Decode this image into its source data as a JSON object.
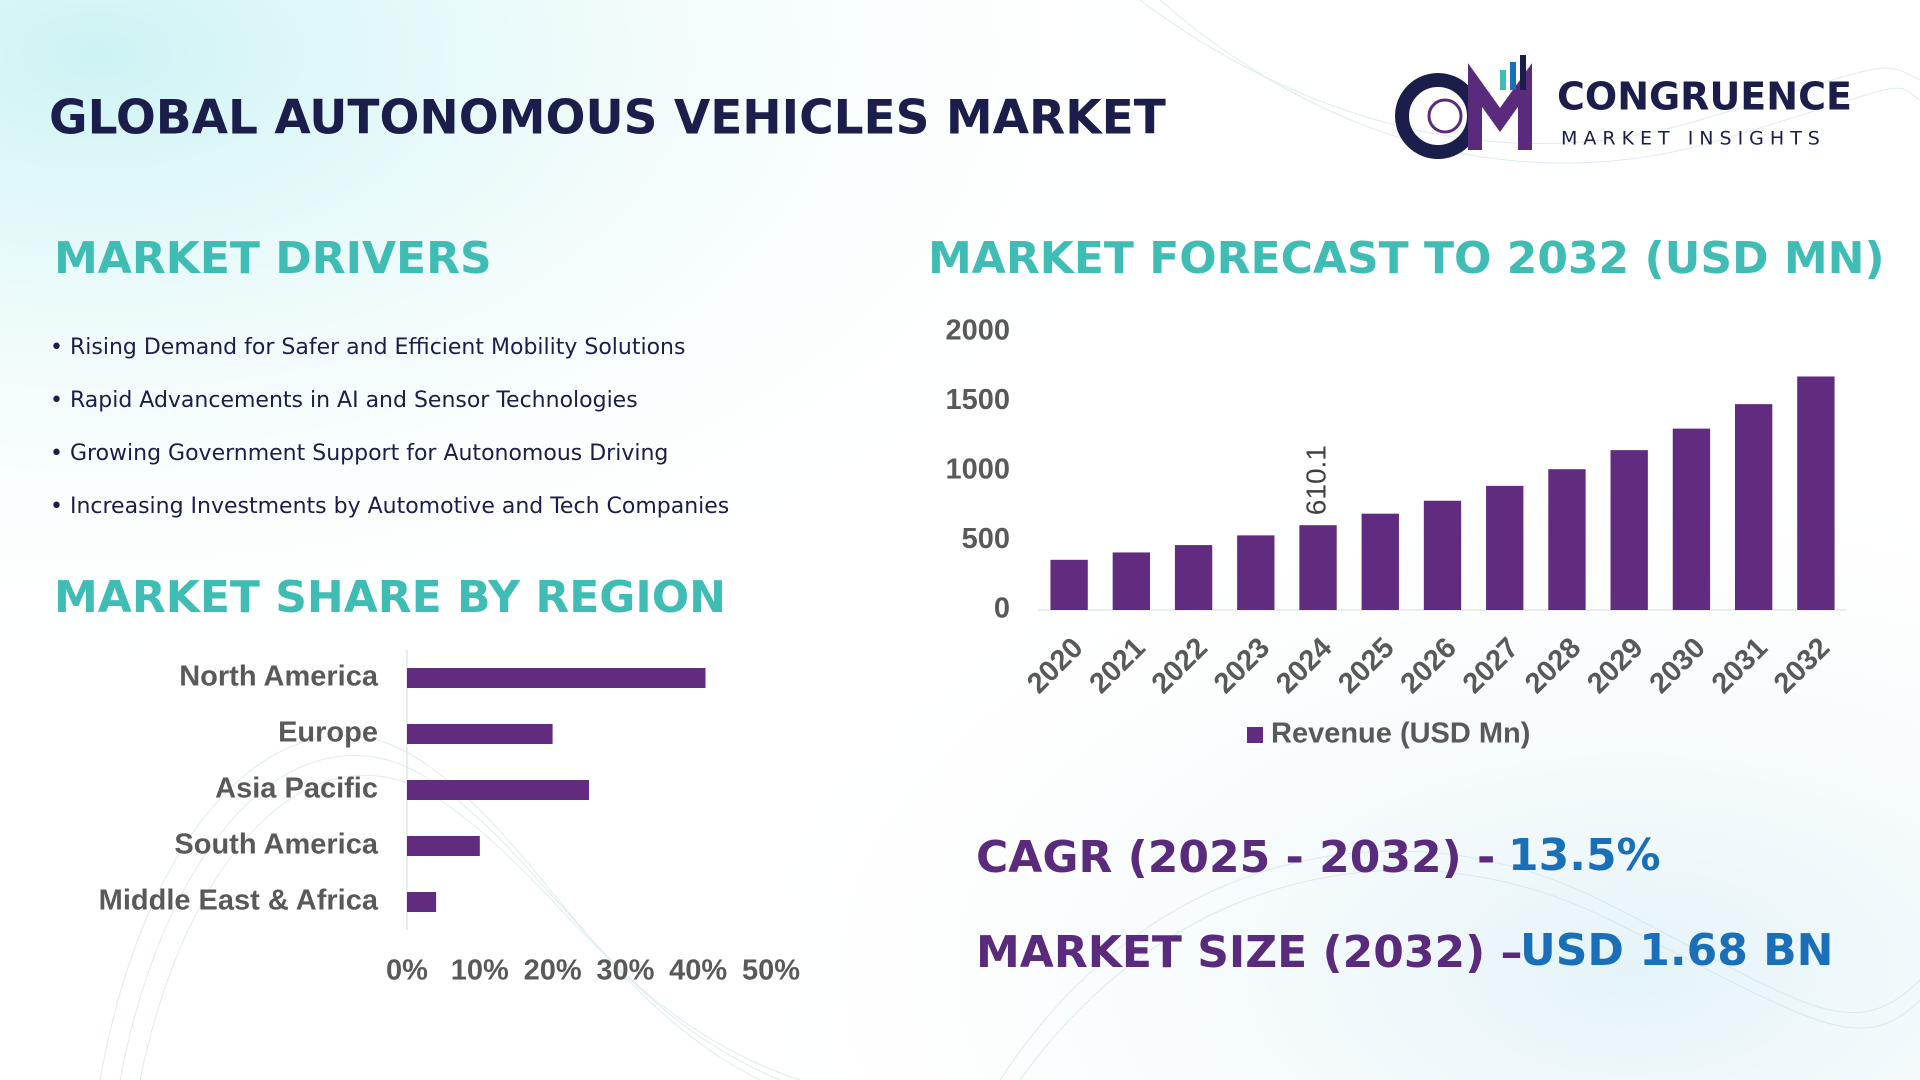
{
  "header": {
    "title": "GLOBAL AUTONOMOUS VEHICLES MARKET",
    "logo_name": "CONGRUENCE",
    "logo_tagline": "MARKET INSIGHTS"
  },
  "drivers": {
    "title": "MARKET DRIVERS",
    "items": [
      "• Rising Demand for Safer and Efficient Mobility Solutions",
      "• Rapid Advancements in AI and Sensor Technologies",
      "• Growing Government Support for Autonomous Driving",
      "• Increasing Investments by Automotive and Tech Companies"
    ]
  },
  "highlights": {
    "cagr_label": "CAGR (2025 - 2032) -",
    "cagr_value": "13.5%",
    "size_label": "MARKET SIZE (2032) –",
    "size_value": "USD 1.68 BN"
  },
  "chart_data": [
    {
      "type": "bar",
      "orientation": "horizontal",
      "title": "MARKET SHARE BY REGION",
      "categories": [
        "North America",
        "Europe",
        "Asia Pacific",
        "South America",
        "Middle East & Africa"
      ],
      "values": [
        41,
        20,
        25,
        10,
        4
      ],
      "color": "#612b7f",
      "xlim": [
        0,
        50
      ],
      "xticks": [
        {
          "value": 0,
          "label": "0%"
        },
        {
          "value": 10,
          "label": "10%"
        },
        {
          "value": 20,
          "label": "20%"
        },
        {
          "value": 30,
          "label": "30%"
        },
        {
          "value": 40,
          "label": "40%"
        },
        {
          "value": 50,
          "label": "50%"
        }
      ]
    },
    {
      "type": "bar",
      "orientation": "vertical",
      "title": "MARKET FORECAST TO 2032 (USD MN)",
      "categories": [
        "2020",
        "2021",
        "2022",
        "2023",
        "2024",
        "2025",
        "2026",
        "2027",
        "2028",
        "2029",
        "2030",
        "2031",
        "2032"
      ],
      "series": [
        {
          "name": "Revenue (USD Mn)",
          "color": "#612b7f",
          "values": [
            361,
            414,
            467,
            537,
            610.1,
            693,
            786,
            893,
            1013,
            1150,
            1305,
            1481,
            1680
          ],
          "value_labels": [
            null,
            null,
            null,
            null,
            "610.1",
            null,
            null,
            null,
            null,
            null,
            null,
            null,
            null
          ]
        }
      ],
      "ylim": [
        0,
        2000
      ],
      "yticks": [
        0,
        500,
        1000,
        1500,
        2000
      ],
      "legend": "bottom"
    }
  ]
}
